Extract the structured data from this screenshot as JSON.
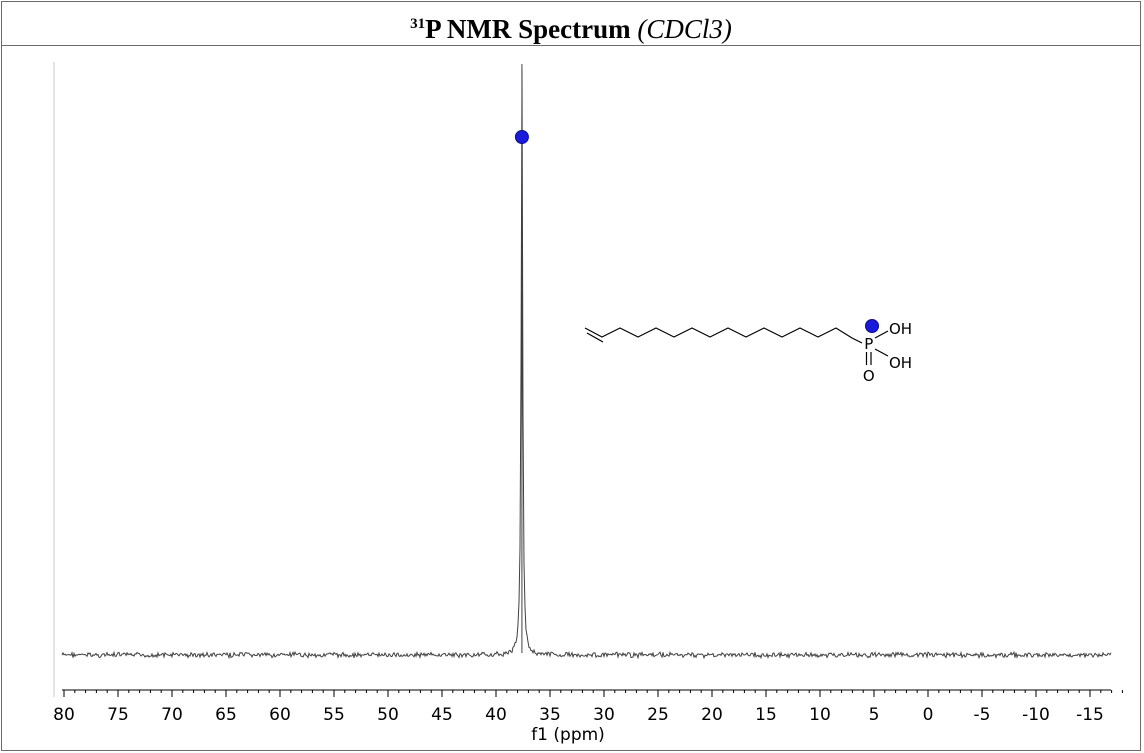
{
  "header": {
    "superscript": "31",
    "title_main": "P NMR Spectrum",
    "solvent": "(CDCl3)"
  },
  "chart_data": {
    "type": "line",
    "title": "31P NMR Spectrum (CDCl3)",
    "xlabel": "f1 (ppm)",
    "ylabel": "",
    "xlim": [
      80,
      -18
    ],
    "x_reversed": true,
    "x_ticks": [
      80,
      75,
      70,
      65,
      60,
      55,
      50,
      45,
      40,
      35,
      30,
      25,
      20,
      15,
      10,
      5,
      0,
      -5,
      -10,
      -15
    ],
    "x_tick_labels": [
      "80",
      "75",
      "70",
      "65",
      "60",
      "55",
      "50",
      "45",
      "40",
      "35",
      "30",
      "25",
      "20",
      "15",
      "10",
      "5",
      "0",
      "-5",
      "-10",
      "-15"
    ],
    "minor_tick_step": 1,
    "grid": false,
    "legend": "none",
    "peaks": [
      {
        "shift_ppm": 37.6,
        "relative_height": 1.0,
        "marker": "blue-dot"
      }
    ],
    "line_color": "#404040",
    "marker_color": "#1a1adb"
  },
  "structure": {
    "atoms": {
      "phosphorus": "P",
      "oxygen": "O",
      "hydroxyl_top": "OH",
      "hydroxyl_bottom": "OH"
    },
    "marker_color": "#1a1adb"
  }
}
